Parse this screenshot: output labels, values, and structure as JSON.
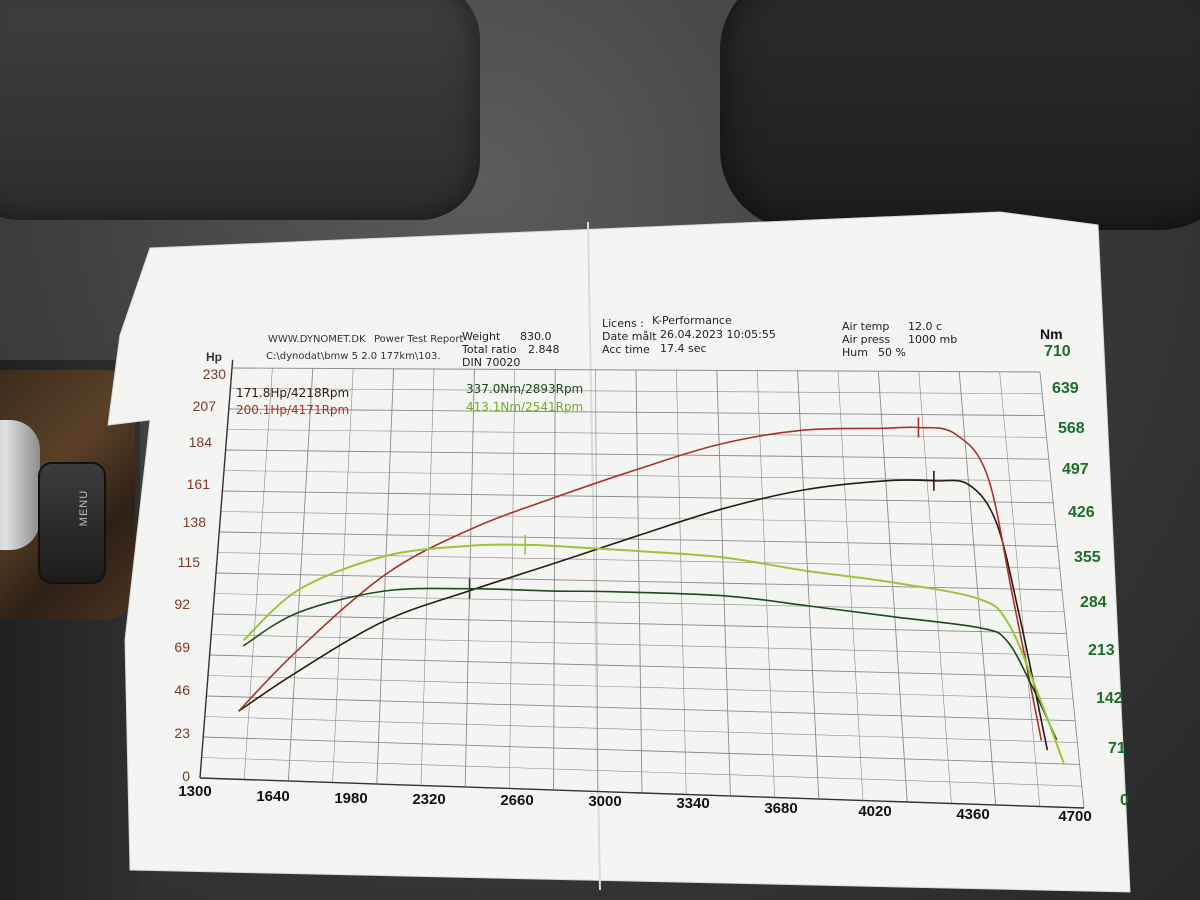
{
  "report": {
    "brand": "WWW.DYNOMET.DK",
    "title": "Power Test Report",
    "file_path": "C:\\dynodat\\bmw 5 2.0 177km\\103.",
    "weight_label": "Weight",
    "weight_value": "830.0",
    "ratio_label": "Total ratio",
    "ratio_value": "2.848",
    "din": "DIN 70020",
    "licens_label": "Licens :",
    "licens_value": "K-Performance",
    "date_label": "Date målt",
    "date_value": "26.04.2023 10:05:55",
    "acc_label": "Acc time",
    "acc_value": "17.4 sec",
    "air_temp_label": "Air temp",
    "air_temp_value": "12.0 c",
    "air_press_label": "Air press",
    "air_press_value": "1000 mb",
    "hum_label": "Hum",
    "hum_value": "50 %"
  },
  "peaks": {
    "hp_stock": "171.8Hp/4218Rpm",
    "hp_tuned": "200.1Hp/4171Rpm",
    "nm_stock": "337.0Nm/2893Rpm",
    "nm_tuned": "413.1Nm/2541Rpm"
  },
  "colors": {
    "hp_stock": "#2a1a14",
    "hp_tuned": "#a8332a",
    "nm_stock": "#1e4a1e",
    "nm_tuned": "#9cc43a",
    "grid": "#8a8a8a",
    "paper": "#f4f4f2"
  },
  "chart_data": {
    "type": "line",
    "x_unit": "rpm",
    "xlim": [
      1300,
      4700
    ],
    "x_ticks": [
      "1300",
      "1640",
      "1980",
      "2320",
      "2660",
      "3000",
      "3340",
      "3680",
      "4020",
      "4360",
      "4700"
    ],
    "y_left_label": "Hp",
    "y_left_lim": [
      0,
      230
    ],
    "y_left_ticks": [
      "0",
      "23",
      "46",
      "69",
      "92",
      "115",
      "138",
      "161",
      "184",
      "207",
      "230"
    ],
    "y_right_label": "Nm",
    "y_right_lim": [
      0,
      710
    ],
    "y_right_ticks": [
      "0",
      "71",
      "142",
      "213",
      "284",
      "355",
      "426",
      "497",
      "568",
      "639",
      "710"
    ],
    "grid": true,
    "series": [
      {
        "name": "171.8Hp/4218Rpm",
        "axis": "left",
        "color_key": "hp_stock",
        "x": [
          1430,
          1640,
          1980,
          2320,
          2660,
          3000,
          3340,
          3680,
          4020,
          4218,
          4360,
          4460,
          4520,
          4580
        ],
        "y": [
          38,
          60,
          90,
          108,
          124,
          140,
          155,
          166,
          171.5,
          171.8,
          170,
          150,
          100,
          30
        ]
      },
      {
        "name": "200.1Hp/4171Rpm",
        "axis": "left",
        "color_key": "hp_tuned",
        "x": [
          1430,
          1640,
          1980,
          2320,
          2660,
          3000,
          3340,
          3680,
          4020,
          4171,
          4320,
          4440,
          4500,
          4560
        ],
        "y": [
          38,
          72,
          116,
          142,
          160,
          176,
          190,
          198,
          199.5,
          200.1,
          197,
          175,
          110,
          35
        ]
      },
      {
        "name": "337.0Nm/2893Rpm",
        "axis": "right",
        "color_key": "nm_stock",
        "x": [
          1430,
          1640,
          1980,
          2320,
          2660,
          2893,
          3340,
          3680,
          4020,
          4360,
          4460,
          4540,
          4620
        ],
        "y": [
          230,
          290,
          330,
          337,
          336,
          337,
          334,
          320,
          305,
          290,
          270,
          200,
          110
        ]
      },
      {
        "name": "413.1Nm/2541Rpm",
        "axis": "right",
        "color_key": "nm_tuned",
        "x": [
          1430,
          1640,
          1980,
          2320,
          2541,
          2660,
          3000,
          3340,
          3680,
          4020,
          4360,
          4470,
          4560,
          4640
        ],
        "y": [
          240,
          330,
          390,
          410,
          413.1,
          412,
          406,
          398,
          378,
          362,
          338,
          300,
          190,
          70
        ]
      }
    ]
  }
}
